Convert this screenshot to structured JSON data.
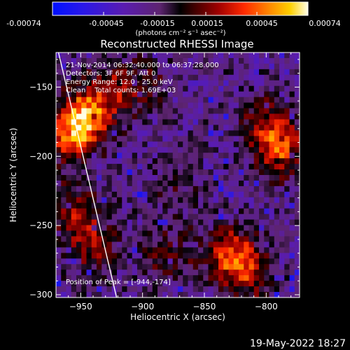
{
  "colorbar": {
    "tick_labels": [
      "-0.00074",
      "-0.00045",
      "-0.00015",
      "0.00015",
      "0.00045",
      "0.00074"
    ],
    "units_label": "(photons cm⁻² s⁻¹ asec⁻²)"
  },
  "chart_data": {
    "type": "heatmap",
    "title": "Reconstructed RHESSI Image",
    "xlabel": "Heliocentric X (arcsec)",
    "ylabel": "Heliocentric Y (arcsec)",
    "xlim": [
      -970,
      -773
    ],
    "ylim": [
      -302,
      -125
    ],
    "x_ticks": [
      -950,
      -900,
      -850,
      -800
    ],
    "y_ticks": [
      -150,
      -200,
      -250,
      -300
    ],
    "x_tick_labels": [
      "−950",
      "−900",
      "−850",
      "−800"
    ],
    "y_tick_labels": [
      "−150",
      "−200",
      "−250",
      "−300"
    ],
    "color_range": [
      -0.00074,
      0.00074
    ],
    "grid_cells": [
      48,
      44
    ],
    "info_lines": [
      "21-Nov-2014 06:32:40.000 to 06:37:28.000",
      "Detectors: 3F 6F 9F, Att 0",
      "Energy Range: 12.0 - 25.0 keV",
      "Clean    Total counts: 1.69E+03"
    ],
    "peak_label": "Position of Peak = [-944,-174]",
    "peak_position": [
      -944,
      -174
    ],
    "limb_points": [
      [
        -968,
        -125
      ],
      [
        -921,
        -302
      ]
    ],
    "bright_sources": [
      {
        "x": -945,
        "y": -172,
        "amplitude": 1.0
      },
      {
        "x": -962,
        "y": -185,
        "amplitude": 0.7
      },
      {
        "x": -925,
        "y": -150,
        "amplitude": 0.5
      },
      {
        "x": -790,
        "y": -195,
        "amplitude": 0.75
      },
      {
        "x": -800,
        "y": -175,
        "amplitude": 0.45
      },
      {
        "x": -830,
        "y": -270,
        "amplitude": 0.7
      },
      {
        "x": -815,
        "y": -285,
        "amplitude": 0.55
      },
      {
        "x": -940,
        "y": -265,
        "amplitude": 0.5
      },
      {
        "x": -955,
        "y": -240,
        "amplitude": 0.5
      },
      {
        "x": -880,
        "y": -270,
        "amplitude": 0.35
      },
      {
        "x": -895,
        "y": -150,
        "amplitude": 0.3
      },
      {
        "x": -870,
        "y": -220,
        "amplitude": 0.22
      }
    ]
  },
  "timestamp": "19-May-2022 18:27"
}
